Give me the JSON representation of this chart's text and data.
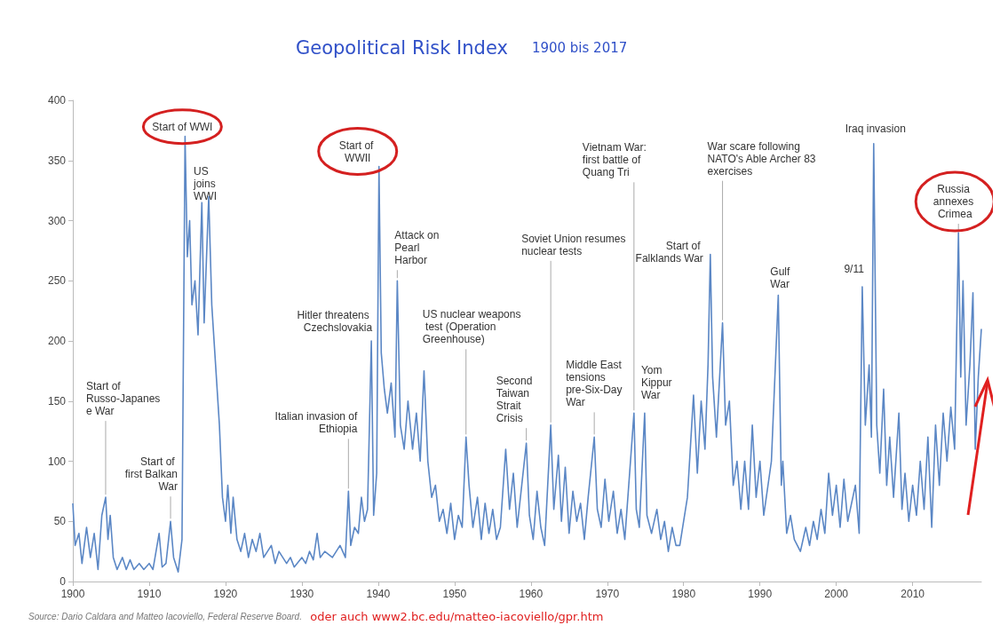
{
  "chart_data": {
    "type": "line",
    "title": "Geopolitical Risk Index",
    "subtitle": "1900 bis 2017",
    "xlim": [
      1900,
      2019
    ],
    "xticks": [
      1900,
      1910,
      1920,
      1930,
      1940,
      1950,
      1960,
      1970,
      1980,
      1990,
      2000,
      2010
    ],
    "ylim": [
      0,
      400
    ],
    "yticks": [
      0,
      50,
      100,
      150,
      200,
      250,
      300,
      350,
      400
    ],
    "grid": false,
    "marker": "none",
    "line_style": "solid",
    "series": [
      {
        "color": "#5b87c5",
        "x": [
          1900,
          1900.3,
          1900.8,
          1901.2,
          1901.8,
          1902.3,
          1902.8,
          1903.3,
          1903.8,
          1904.3,
          1904.6,
          1904.9,
          1905.3,
          1905.8,
          1906.5,
          1907,
          1907.5,
          1908,
          1908.7,
          1909.3,
          1910,
          1910.5,
          1911.3,
          1911.7,
          1912.2,
          1912.8,
          1913.2,
          1913.8,
          1914.3,
          1914.7,
          1915,
          1915.3,
          1915.6,
          1916,
          1916.4,
          1916.9,
          1917.2,
          1917.8,
          1918.2,
          1918.7,
          1919.2,
          1919.6,
          1920,
          1920.3,
          1920.7,
          1921,
          1921.5,
          1922,
          1922.5,
          1923,
          1923.5,
          1924,
          1924.5,
          1925,
          1926,
          1926.5,
          1927,
          1928,
          1928.5,
          1929,
          1930,
          1930.5,
          1931,
          1931.5,
          1932,
          1932.4,
          1933,
          1934,
          1935,
          1935.7,
          1936.1,
          1936.4,
          1936.9,
          1937.4,
          1937.8,
          1938.2,
          1938.6,
          1939.1,
          1939.4,
          1939.8,
          1940.1,
          1940.4,
          1940.8,
          1941.2,
          1941.7,
          1942.2,
          1942.5,
          1942.9,
          1943.4,
          1943.9,
          1944.5,
          1945,
          1945.5,
          1946,
          1946.5,
          1947,
          1947.5,
          1948,
          1948.5,
          1949,
          1949.5,
          1950,
          1950.5,
          1951,
          1951.5,
          1951.9,
          1952.4,
          1953,
          1953.5,
          1954,
          1954.5,
          1955,
          1955.5,
          1956,
          1956.7,
          1957.2,
          1957.7,
          1958.2,
          1958.8,
          1959.4,
          1959.8,
          1960.3,
          1960.8,
          1961.3,
          1961.8,
          1962.6,
          1963,
          1963.6,
          1964,
          1964.5,
          1965,
          1965.5,
          1966,
          1966.5,
          1967,
          1967.5,
          1968.3,
          1968.7,
          1969.2,
          1969.7,
          1970.2,
          1970.8,
          1971.3,
          1971.8,
          1972.3,
          1973.5,
          1973.8,
          1974.2,
          1974.9,
          1975.2,
          1975.8,
          1976.5,
          1977,
          1977.5,
          1978,
          1978.5,
          1979,
          1979.5,
          1980.5,
          1981.3,
          1981.8,
          1982.3,
          1982.8,
          1983.2,
          1983.5,
          1983.8,
          1984.3,
          1985.1,
          1985.5,
          1986,
          1986.5,
          1987,
          1987.5,
          1988,
          1988.5,
          1989,
          1989.5,
          1990,
          1990.5,
          1991.5,
          1992.4,
          1992.8,
          1993,
          1993.5,
          1994,
          1994.5,
          1995.3,
          1996,
          1996.5,
          1997,
          1997.5,
          1998,
          1998.5,
          1999,
          1999.5,
          2000,
          2000.5,
          2001,
          2001.5,
          2002.5,
          2003,
          2003.4,
          2003.8,
          2004.3,
          2004.6,
          2004.9,
          2005.3,
          2005.7,
          2006.2,
          2006.6,
          2007,
          2007.5,
          2008.2,
          2008.6,
          2009,
          2009.5,
          2010,
          2010.5,
          2011,
          2011.5,
          2012,
          2012.5,
          2013,
          2013.5,
          2014,
          2014.5,
          2015,
          2015.5,
          2016,
          2016.3,
          2016.6,
          2017,
          2017.5,
          2017.9,
          2018.2,
          2018.6,
          2019
        ],
        "values": [
          65,
          30,
          40,
          15,
          45,
          20,
          40,
          10,
          55,
          70,
          35,
          55,
          20,
          10,
          20,
          10,
          18,
          10,
          15,
          10,
          15,
          10,
          40,
          12,
          15,
          50,
          20,
          8,
          35,
          370,
          270,
          300,
          230,
          250,
          205,
          315,
          215,
          320,
          230,
          180,
          130,
          70,
          50,
          80,
          40,
          70,
          35,
          25,
          40,
          20,
          35,
          25,
          40,
          20,
          30,
          15,
          25,
          15,
          20,
          12,
          20,
          15,
          25,
          18,
          40,
          20,
          25,
          20,
          30,
          20,
          75,
          30,
          45,
          40,
          70,
          50,
          60,
          200,
          55,
          90,
          345,
          190,
          160,
          140,
          165,
          120,
          250,
          130,
          110,
          150,
          110,
          140,
          100,
          175,
          100,
          70,
          80,
          50,
          60,
          40,
          65,
          35,
          55,
          45,
          120,
          80,
          45,
          70,
          35,
          65,
          40,
          60,
          35,
          45,
          110,
          60,
          90,
          45,
          80,
          115,
          55,
          35,
          75,
          45,
          30,
          130,
          60,
          105,
          50,
          95,
          40,
          75,
          50,
          65,
          35,
          70,
          120,
          60,
          45,
          85,
          50,
          75,
          40,
          60,
          35,
          140,
          60,
          45,
          140,
          55,
          40,
          60,
          35,
          50,
          25,
          45,
          30,
          30,
          70,
          155,
          90,
          150,
          110,
          180,
          272,
          170,
          120,
          215,
          130,
          150,
          80,
          100,
          60,
          100,
          60,
          130,
          70,
          100,
          55,
          100,
          238,
          80,
          100,
          40,
          55,
          35,
          25,
          45,
          30,
          50,
          35,
          60,
          40,
          90,
          55,
          80,
          45,
          85,
          50,
          80,
          40,
          245,
          130,
          180,
          120,
          364,
          130,
          90,
          160,
          80,
          120,
          70,
          140,
          60,
          90,
          50,
          80,
          55,
          100,
          60,
          120,
          45,
          130,
          80,
          140,
          100,
          145,
          110,
          290,
          170,
          250,
          130,
          180,
          240,
          110,
          170,
          210
        ]
      }
    ],
    "annotations": [
      {
        "text": "Start of Russo-Japanese War",
        "x": 1904.3,
        "y": 70
      },
      {
        "text": "Start of first Balkan War",
        "x": 1912.8,
        "y": 50
      },
      {
        "text": "Start of WWI",
        "x": 1914.7,
        "y": 370
      },
      {
        "text": "US joins WWI",
        "x": 1917.8,
        "y": 320
      },
      {
        "text": "Hitler threatens Czechslovakia",
        "x": 1939.1,
        "y": 200
      },
      {
        "text": "Italian invasion of Ethiopia",
        "x": 1936.1,
        "y": 75
      },
      {
        "text": "Start of WWII",
        "x": 1940.1,
        "y": 345
      },
      {
        "text": "Attack on Pearl Harbor",
        "x": 1942.5,
        "y": 250
      },
      {
        "text": "US nuclear weapons test (Operation Greenhouse)",
        "x": 1951.5,
        "y": 120
      },
      {
        "text": "Second Taiwan Strait Crisis",
        "x": 1959.4,
        "y": 115
      },
      {
        "text": "Soviet Union resumes nuclear tests",
        "x": 1962.6,
        "y": 130
      },
      {
        "text": "Middle East tensions pre-Six-Day War",
        "x": 1968.3,
        "y": 120
      },
      {
        "text": "Vietnam War: first battle of Quang Tri",
        "x": 1973.5,
        "y": 140
      },
      {
        "text": "Yom Kippur War",
        "x": 1974.9,
        "y": 140
      },
      {
        "text": "Start of Falklands War",
        "x": 1983.5,
        "y": 272
      },
      {
        "text": "War scare following NATO's Able Archer 83 exercises",
        "x": 1985.1,
        "y": 215
      },
      {
        "text": "Gulf War",
        "x": 1992.4,
        "y": 238
      },
      {
        "text": "9/11",
        "x": 2003.4,
        "y": 245
      },
      {
        "text": "Iraq invasion",
        "x": 2004.9,
        "y": 364
      },
      {
        "text": "Russia annexes Crimea",
        "x": 2016,
        "y": 290
      },
      "Source: Dario Caldara and Matteo Iacoviello, Federal Reserve Board.",
      "oder auch www2.bc.edu/matteo-iacoviello/gpr.htm"
    ]
  }
}
